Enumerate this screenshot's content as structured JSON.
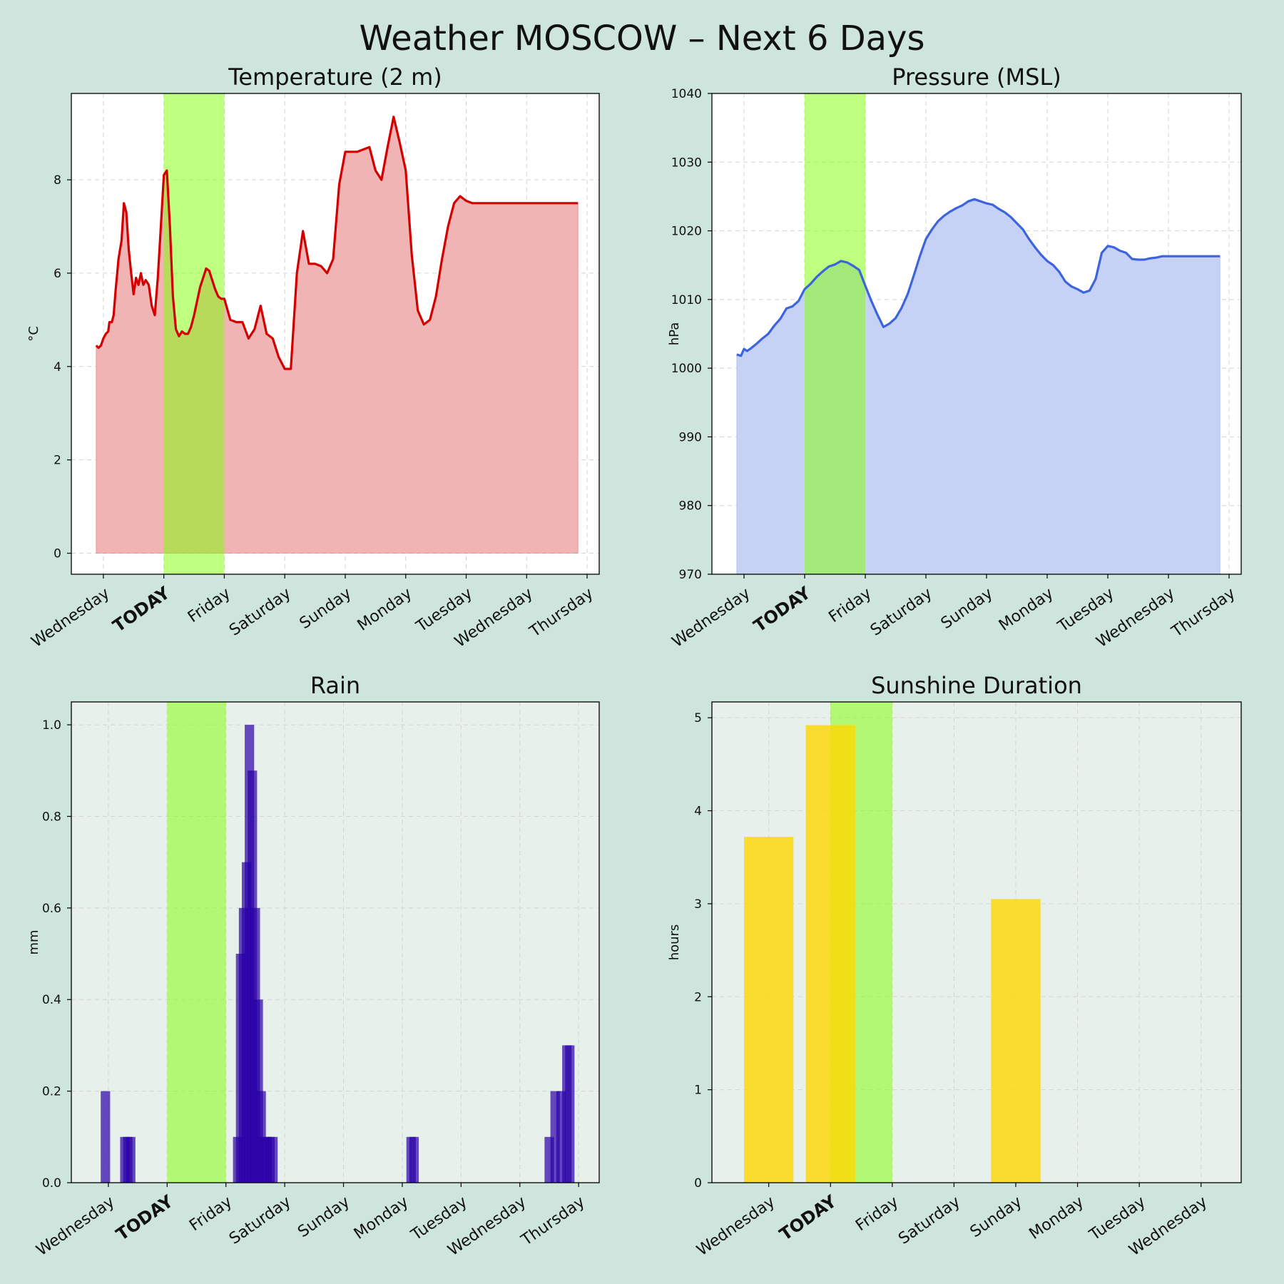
{
  "title": "Weather MOSCOW – Next 6 Days",
  "colors": {
    "figure_bg": "#cde5dc",
    "today_band": "#7fff00",
    "today_text": "#5cc000",
    "temperature_line": "#d40000",
    "temperature_fill": "#f0b4b4",
    "pressure_line": "#3d63dd",
    "pressure_fill": "#c6d2f5",
    "rain_bar": "#2a00a8",
    "sunshine_bar": "#ffd700"
  },
  "chart_data": [
    {
      "id": "temperature",
      "type": "area",
      "title": "Temperature (2 m)",
      "ylabel": "°C",
      "xlim_days": [
        -0.53,
        8.2
      ],
      "ylim": [
        -0.45,
        9.85
      ],
      "yticks": [
        0,
        2,
        4,
        6,
        8
      ],
      "today_span_days": [
        1,
        2
      ],
      "grid": true,
      "background": "#ffffff",
      "x_tick_labels": [
        "Wednesday",
        "TODAY",
        "Friday",
        "Saturday",
        "Sunday",
        "Monday",
        "Tuesday",
        "Wednesday",
        "Thursday"
      ],
      "series": [
        {
          "x_days": [
            -0.12,
            -0.08,
            -0.04,
            0,
            0.04,
            0.08,
            0.1,
            0.14,
            0.17,
            0.2,
            0.25,
            0.3,
            0.34,
            0.38,
            0.42,
            0.46,
            0.5,
            0.54,
            0.58,
            0.62,
            0.66,
            0.7,
            0.75,
            0.8,
            0.85,
            0.9,
            0.95,
            1.0,
            1.05,
            1.1,
            1.15,
            1.2,
            1.25,
            1.3,
            1.35,
            1.4,
            1.45,
            1.5,
            1.55,
            1.6,
            1.65,
            1.7,
            1.75,
            1.8,
            1.85,
            1.9,
            1.95,
            2.0,
            2.1,
            2.2,
            2.3,
            2.4,
            2.5,
            2.6,
            2.7,
            2.8,
            2.9,
            3.0,
            3.1,
            3.2,
            3.3,
            3.4,
            3.5,
            3.6,
            3.7,
            3.8,
            3.9,
            4.0,
            4.1,
            4.2,
            4.3,
            4.4,
            4.5,
            4.6,
            4.7,
            4.8,
            4.9,
            5.0,
            5.1,
            5.2,
            5.3,
            5.4,
            5.5,
            5.6,
            5.7,
            5.8,
            5.9,
            6.0,
            6.1,
            6.2,
            6.3,
            6.4,
            6.5,
            6.6,
            6.7,
            6.8,
            6.9,
            7.0,
            7.1,
            7.2,
            7.3,
            7.4,
            7.5,
            7.6,
            7.7,
            7.8,
            7.85
          ],
          "y": [
            4.45,
            4.4,
            4.45,
            4.6,
            4.7,
            4.75,
            4.95,
            4.95,
            5.1,
            5.6,
            6.3,
            6.7,
            7.5,
            7.3,
            6.5,
            6.0,
            5.55,
            5.9,
            5.75,
            6.0,
            5.75,
            5.85,
            5.75,
            5.3,
            5.1,
            5.9,
            7.0,
            8.1,
            8.2,
            7.0,
            5.5,
            4.8,
            4.65,
            4.75,
            4.7,
            4.7,
            4.85,
            5.1,
            5.4,
            5.7,
            5.9,
            6.1,
            6.05,
            5.85,
            5.65,
            5.5,
            5.45,
            5.45,
            5.0,
            4.95,
            4.95,
            4.6,
            4.8,
            5.3,
            4.7,
            4.6,
            4.2,
            3.95,
            3.95,
            6.0,
            6.9,
            6.2,
            6.2,
            6.15,
            6.0,
            6.3,
            7.9,
            8.6,
            8.6,
            8.6,
            8.65,
            8.7,
            8.2,
            8.0,
            8.7,
            9.35,
            8.8,
            8.2,
            6.4,
            5.2,
            4.9,
            5.0,
            5.5,
            6.3,
            7.0,
            7.5,
            7.65,
            7.55,
            7.5,
            7.5,
            7.5,
            7.5,
            7.5,
            7.5,
            7.5,
            7.5,
            7.5,
            7.5,
            7.5,
            7.5,
            7.5,
            7.5,
            7.5,
            7.5,
            7.5,
            7.5,
            7.5
          ]
        }
      ]
    },
    {
      "id": "pressure",
      "type": "area",
      "title": "Pressure (MSL)",
      "ylabel": "hPa",
      "xlim_days": [
        -0.53,
        8.2
      ],
      "ylim": [
        970,
        1040
      ],
      "yticks": [
        970,
        980,
        990,
        1000,
        1010,
        1020,
        1030,
        1040
      ],
      "today_span_days": [
        1,
        2
      ],
      "grid": true,
      "background": "#ffffff",
      "x_tick_labels": [
        "Wednesday",
        "TODAY",
        "Friday",
        "Saturday",
        "Sunday",
        "Monday",
        "Tuesday",
        "Wednesday",
        "Thursday"
      ],
      "series": [
        {
          "x_days": [
            -0.12,
            -0.05,
            0.0,
            0.05,
            0.1,
            0.2,
            0.3,
            0.4,
            0.5,
            0.6,
            0.7,
            0.8,
            0.9,
            1.0,
            1.1,
            1.2,
            1.3,
            1.4,
            1.5,
            1.6,
            1.7,
            1.8,
            1.9,
            2.0,
            2.1,
            2.2,
            2.3,
            2.4,
            2.5,
            2.6,
            2.7,
            2.8,
            2.9,
            3.0,
            3.1,
            3.2,
            3.3,
            3.4,
            3.5,
            3.6,
            3.7,
            3.8,
            3.9,
            4.0,
            4.1,
            4.2,
            4.3,
            4.4,
            4.5,
            4.6,
            4.7,
            4.8,
            4.9,
            5.0,
            5.1,
            5.2,
            5.3,
            5.4,
            5.5,
            5.6,
            5.7,
            5.8,
            5.9,
            6.0,
            6.1,
            6.2,
            6.3,
            6.4,
            6.5,
            6.6,
            6.7,
            6.8,
            6.9,
            7.0,
            7.1,
            7.2,
            7.3,
            7.4,
            7.5,
            7.6,
            7.7,
            7.8,
            7.85
          ],
          "y": [
            1002,
            1001.8,
            1002.8,
            1002.5,
            1002.8,
            1003.5,
            1004.3,
            1005.0,
            1006.2,
            1007.2,
            1008.7,
            1009.0,
            1009.8,
            1011.5,
            1012.3,
            1013.3,
            1014.1,
            1014.8,
            1015.1,
            1015.6,
            1015.4,
            1014.9,
            1014.3,
            1012.0,
            1009.8,
            1007.8,
            1006.0,
            1006.5,
            1007.3,
            1008.8,
            1010.8,
            1013.5,
            1016.3,
            1018.8,
            1020.2,
            1021.4,
            1022.2,
            1022.8,
            1023.3,
            1023.7,
            1024.3,
            1024.6,
            1024.3,
            1024.0,
            1023.8,
            1023.2,
            1022.7,
            1022.0,
            1021.1,
            1020.2,
            1018.8,
            1017.6,
            1016.5,
            1015.6,
            1015.0,
            1014.0,
            1012.6,
            1011.9,
            1011.5,
            1011.0,
            1011.3,
            1013.0,
            1016.8,
            1017.8,
            1017.6,
            1017.1,
            1016.8,
            1015.9,
            1015.8,
            1015.8,
            1016.0,
            1016.1,
            1016.3,
            1016.3,
            1016.3,
            1016.3,
            1016.3,
            1016.3,
            1016.3,
            1016.3,
            1016.3,
            1016.3,
            1016.3
          ]
        }
      ]
    },
    {
      "id": "rain",
      "type": "bar",
      "title": "Rain",
      "ylabel": "mm",
      "xlim_days": [
        -0.63,
        8.35
      ],
      "ylim": [
        0,
        1.05
      ],
      "yticks": [
        0.0,
        0.2,
        0.4,
        0.6,
        0.8,
        1.0
      ],
      "today_span_days": [
        1,
        2
      ],
      "grid": true,
      "background": "#e7f0eb",
      "x_tick_labels": [
        "Wednesday",
        "TODAY",
        "Friday",
        "Saturday",
        "Sunday",
        "Monday",
        "Tuesday",
        "Wednesday",
        "Thursday"
      ],
      "bar_width_days": 0.16,
      "series": [
        {
          "x_days": [
            -0.05,
            0.28,
            0.33,
            0.38,
            2.2,
            2.25,
            2.3,
            2.35,
            2.4,
            2.45,
            2.5,
            2.55,
            2.6,
            2.65,
            2.7,
            2.75,
            2.8,
            5.15,
            5.2,
            7.5,
            7.6,
            7.7,
            7.8,
            7.85
          ],
          "y": [
            0.2,
            0.1,
            0.1,
            0.1,
            0.1,
            0.5,
            0.6,
            0.7,
            1.0,
            0.9,
            0.6,
            0.4,
            0.2,
            0.1,
            0.1,
            0.1,
            0.1,
            0.1,
            0.1,
            0.1,
            0.2,
            0.2,
            0.3,
            0.3
          ]
        }
      ]
    },
    {
      "id": "sunshine",
      "type": "bar",
      "title": "Sunshine Duration",
      "ylabel": "hours",
      "xlim_days": [
        -0.92,
        7.65
      ],
      "ylim": [
        0,
        5.17
      ],
      "yticks": [
        0,
        1,
        2,
        3,
        4,
        5
      ],
      "today_span_days": [
        1,
        2
      ],
      "grid": true,
      "background": "#e7f0eb",
      "x_tick_labels": [
        "Wednesday",
        "TODAY",
        "Friday",
        "Saturday",
        "Sunday",
        "Monday",
        "Tuesday",
        "Wednesday"
      ],
      "bar_width_days": 0.8,
      "series": [
        {
          "x_days": [
            0,
            1,
            2,
            3,
            4,
            5,
            6,
            7
          ],
          "y": [
            3.72,
            4.92,
            0,
            0,
            3.05,
            0,
            0,
            0
          ]
        }
      ]
    }
  ]
}
